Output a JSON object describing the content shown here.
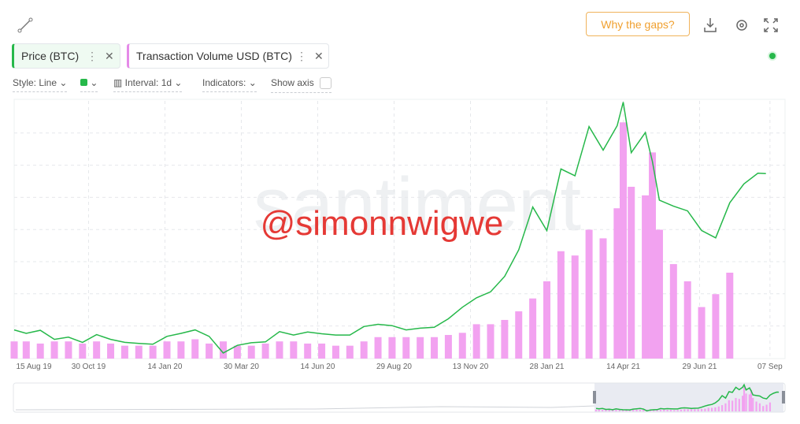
{
  "toolbar": {
    "why_gaps": "Why the gaps?",
    "style": "Style: Line",
    "interval": "Interval: 1d",
    "indicators": "Indicators:",
    "show_axis": "Show axis"
  },
  "watermarks": {
    "brand": "santiment",
    "user": "@simonnwigwe"
  },
  "chart_data": {
    "type": "line",
    "x": [
      "2019-08-17",
      "2019-08-29",
      "2019-09-12",
      "2019-09-26",
      "2019-10-10",
      "2019-10-24",
      "2019-11-07",
      "2019-11-21",
      "2019-12-05",
      "2019-12-19",
      "2020-01-02",
      "2020-01-16",
      "2020-01-30",
      "2020-02-13",
      "2020-02-27",
      "2020-03-12",
      "2020-03-26",
      "2020-04-09",
      "2020-04-23",
      "2020-05-07",
      "2020-05-21",
      "2020-06-04",
      "2020-06-18",
      "2020-07-02",
      "2020-07-16",
      "2020-07-30",
      "2020-08-13",
      "2020-08-27",
      "2020-09-10",
      "2020-09-24",
      "2020-10-08",
      "2020-10-22",
      "2020-11-05",
      "2020-11-19",
      "2020-12-03",
      "2020-12-17",
      "2020-12-31",
      "2021-01-14",
      "2021-01-28",
      "2021-02-11",
      "2021-02-25",
      "2021-03-11",
      "2021-03-25",
      "2021-04-08",
      "2021-04-14",
      "2021-04-22",
      "2021-05-06",
      "2021-05-13",
      "2021-05-20",
      "2021-06-03",
      "2021-06-17",
      "2021-07-01",
      "2021-07-15",
      "2021-07-29",
      "2021-08-12",
      "2021-08-26",
      "2021-09-03"
    ],
    "xlim": [
      "2019-08-17",
      "2021-09-22"
    ],
    "xticks": [
      {
        "value": "2019-08-15",
        "label": "15 Aug 19"
      },
      {
        "value": "2019-10-30",
        "label": "30 Oct 19"
      },
      {
        "value": "2020-01-14",
        "label": "14 Jan 20"
      },
      {
        "value": "2020-03-30",
        "label": "30 Mar 20"
      },
      {
        "value": "2020-06-14",
        "label": "14 Jun 20"
      },
      {
        "value": "2020-08-29",
        "label": "29 Aug 20"
      },
      {
        "value": "2020-11-13",
        "label": "13 Nov 20"
      },
      {
        "value": "2021-01-28",
        "label": "28 Jan 21"
      },
      {
        "value": "2021-04-14",
        "label": "14 Apr 21"
      },
      {
        "value": "2021-06-29",
        "label": "29 Jun 21"
      },
      {
        "value": "2021-09-07",
        "label": "07 Sep"
      }
    ],
    "ylim": [
      3600,
      63800
    ],
    "y2lim": [
      0,
      60
    ],
    "grid": true,
    "series": [
      {
        "name": "Price (BTC)",
        "color": "#26b84a",
        "values": [
          10300,
          9500,
          10200,
          8100,
          8600,
          7400,
          9200,
          8100,
          7400,
          7150,
          6950,
          8800,
          9500,
          10300,
          8800,
          4900,
          6700,
          7300,
          7500,
          9900,
          9100,
          9800,
          9400,
          9100,
          9100,
          11100,
          11600,
          11300,
          10300,
          10700,
          10900,
          12900,
          15600,
          17800,
          19200,
          22800,
          29000,
          39000,
          33500,
          47900,
          46300,
          57800,
          52300,
          58000,
          63500,
          51700,
          56400,
          49700,
          40600,
          39200,
          38100,
          33500,
          31800,
          40000,
          44400,
          46900,
          46800
        ]
      },
      {
        "name": "Transaction Volume USD (BTC)",
        "type": "bar",
        "axis": "y2",
        "color": "#f2a2f0",
        "values": [
          4,
          4,
          3.5,
          4,
          4,
          3.5,
          4,
          3.5,
          3,
          3,
          3,
          4,
          4,
          4.5,
          3.5,
          4,
          3,
          3,
          3.5,
          4,
          4,
          3.5,
          3.5,
          3,
          3,
          4,
          5,
          5,
          5,
          5,
          5,
          5.5,
          6,
          8,
          8,
          9,
          11,
          14,
          18,
          25,
          24,
          30,
          28,
          35,
          55,
          40,
          38,
          48,
          30,
          22,
          18,
          12,
          15,
          20,
          null,
          null,
          null
        ]
      }
    ]
  }
}
